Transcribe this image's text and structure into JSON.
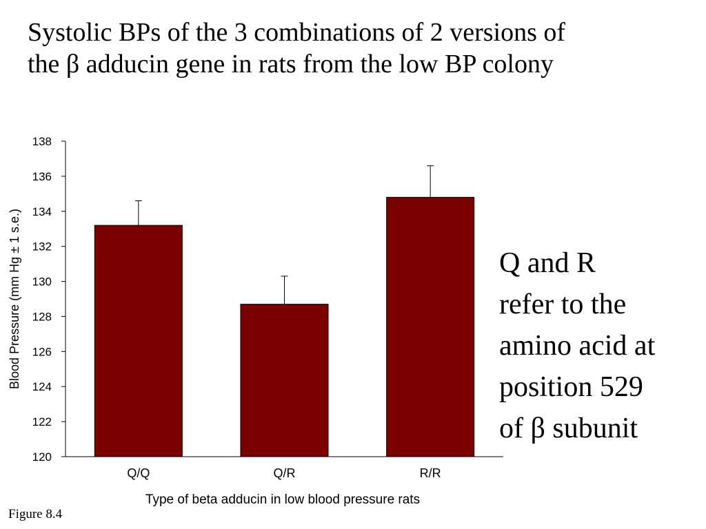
{
  "slide": {
    "title_lines": [
      "Systolic BPs of the 3 combinations of 2 versions of",
      "the β adducin gene in rats from the low BP colony"
    ],
    "note_lines": [
      "Q and R",
      "refer to the",
      "amino acid at",
      "position 529",
      "of β subunit"
    ],
    "figure_label": "Figure 8.4"
  },
  "chart_data": {
    "type": "bar",
    "categories": [
      "Q/Q",
      "Q/R",
      "R/R"
    ],
    "values": [
      133.2,
      128.7,
      134.8
    ],
    "errors": [
      1.4,
      1.6,
      1.8
    ],
    "xlabel": "Type of beta adducin in low blood pressure rats",
    "ylabel": "Blood Pressure (mm Hg ± 1 s.e.)",
    "ylim": [
      120,
      138
    ],
    "yticks": [
      120,
      122,
      124,
      126,
      128,
      130,
      132,
      134,
      136,
      138
    ],
    "bar_color": "#7a0000",
    "error_bars": "upper only",
    "grid": false,
    "legend": "none"
  }
}
